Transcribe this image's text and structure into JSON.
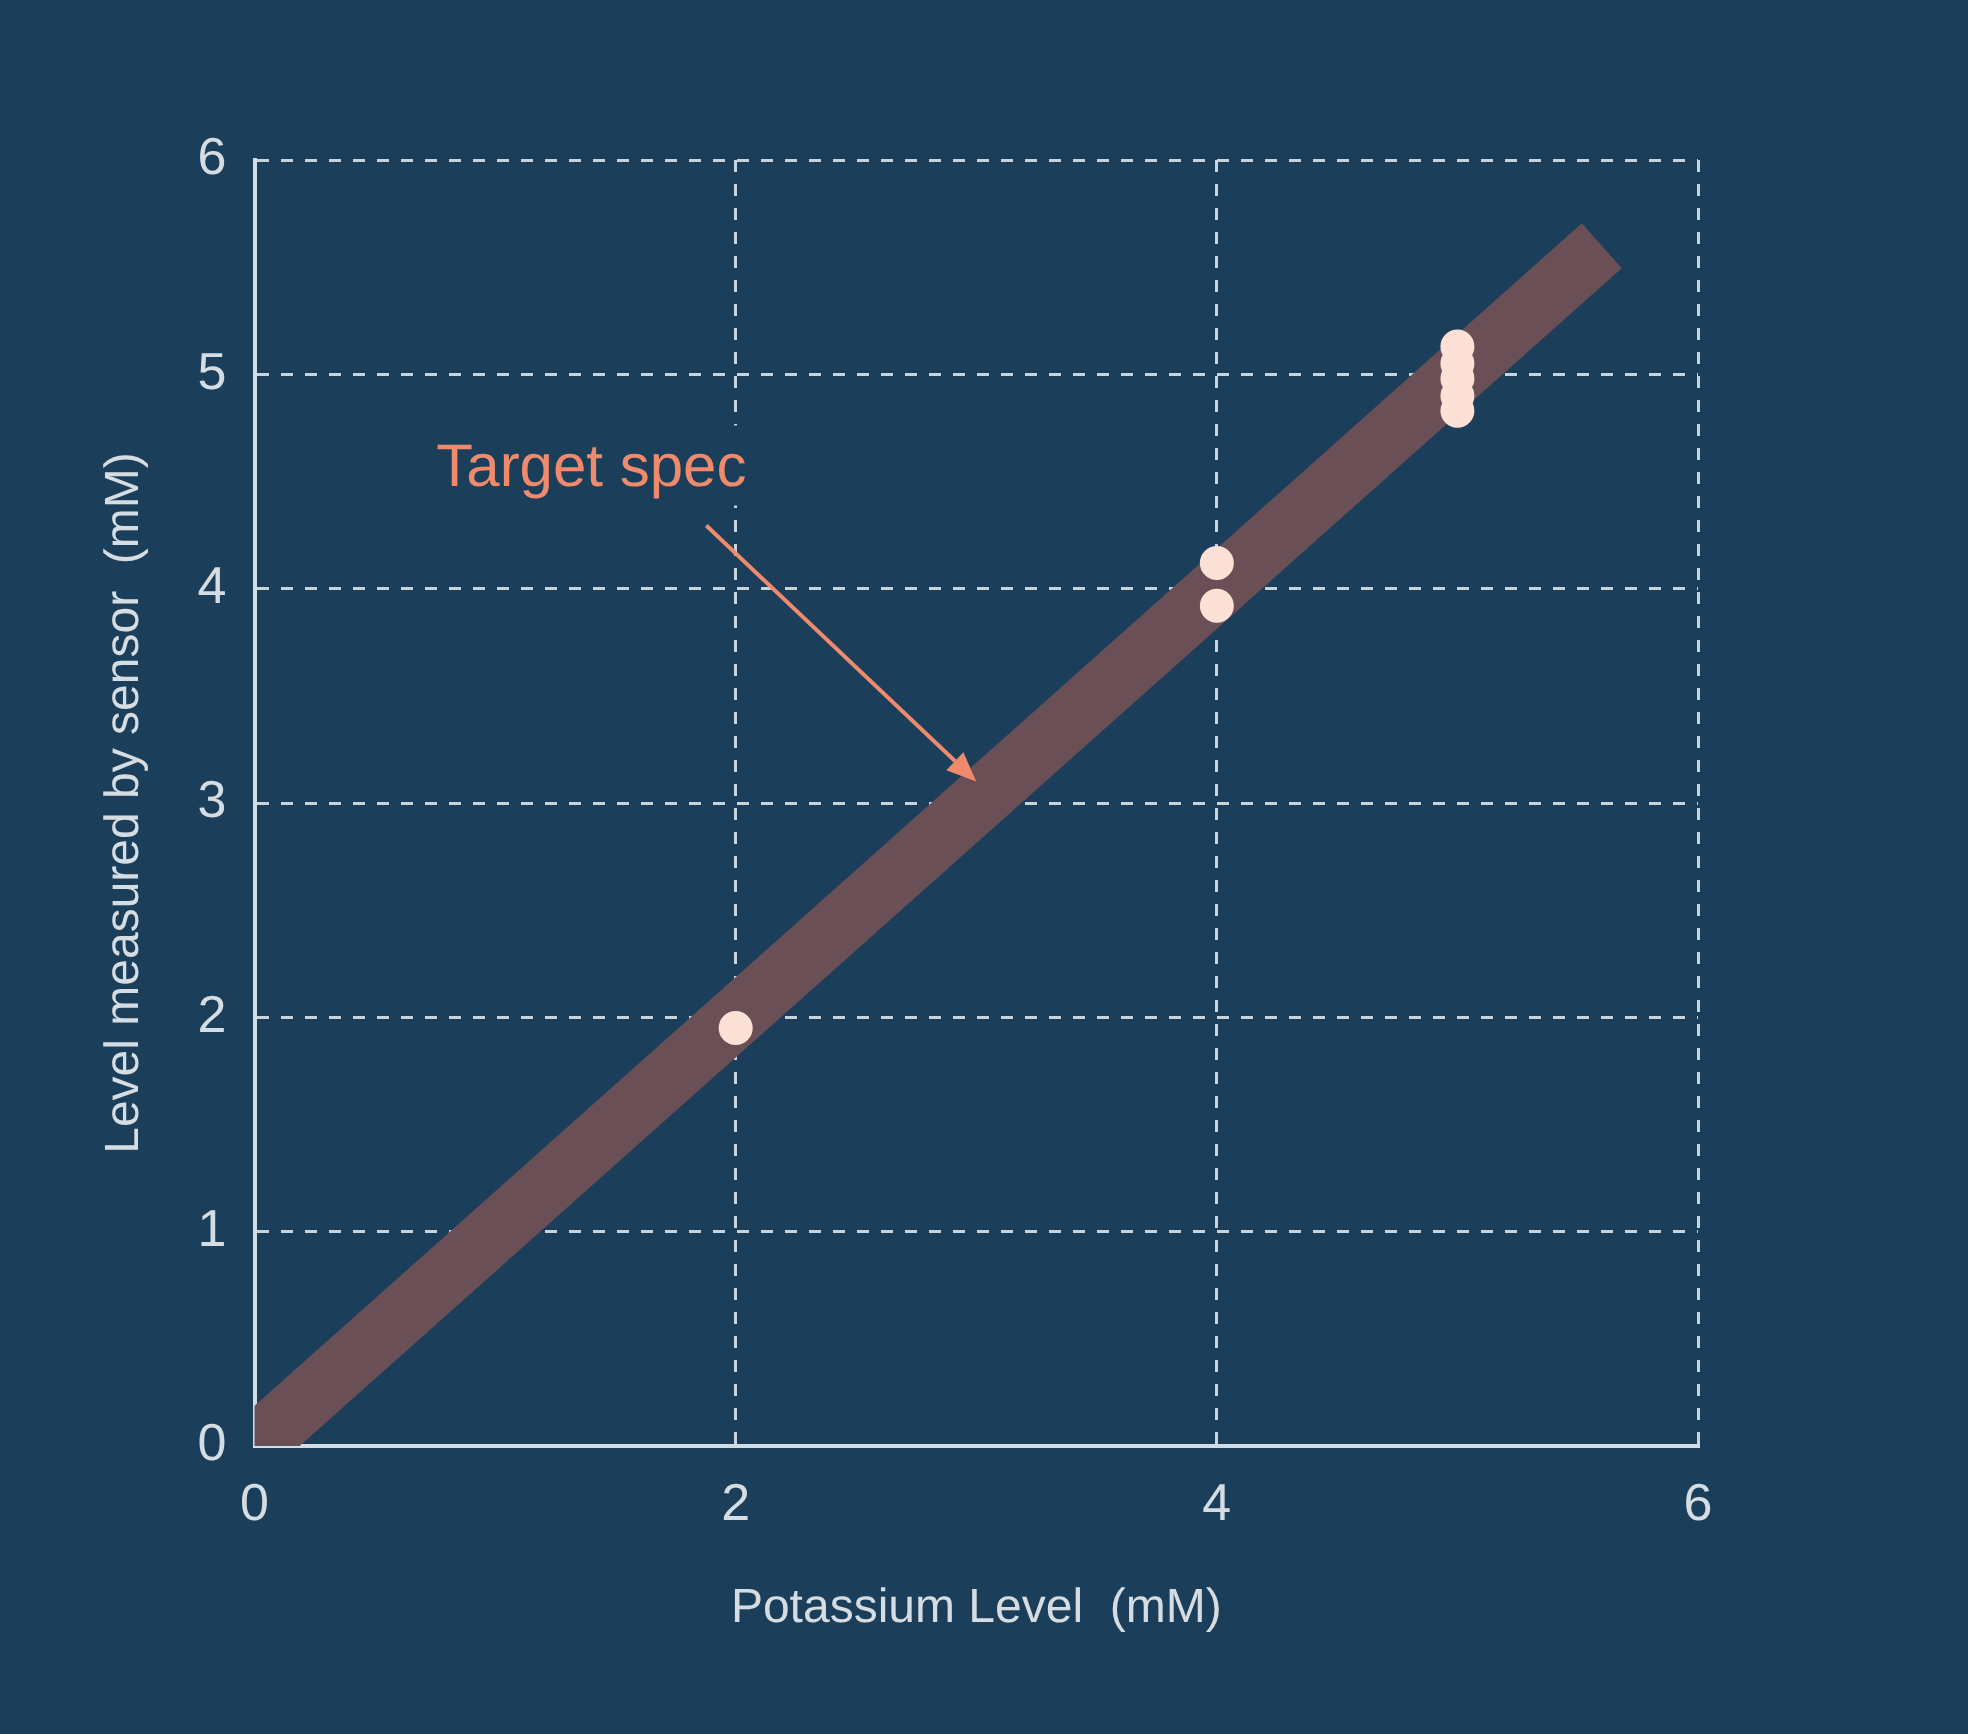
{
  "chart_data": {
    "type": "scatter",
    "xlabel": "Potassium Level  (mM)",
    "ylabel": "Level measured by sensor  (mM)",
    "xlim": [
      0,
      6
    ],
    "xticks": [
      0,
      2,
      4,
      6
    ],
    "ylim": [
      0,
      6
    ],
    "yticks": [
      0,
      1,
      2,
      3,
      4,
      5,
      6
    ],
    "grid": true,
    "marker": "circle",
    "legend": false,
    "series": [
      {
        "type": "line",
        "marker": "none",
        "color": "#6b4f57",
        "x": [
          0,
          5.6
        ],
        "values": [
          0,
          5.6
        ]
      },
      {
        "color": "#fde0d6",
        "x": [
          2,
          4,
          4,
          5,
          5,
          5,
          5,
          5
        ],
        "values": [
          1.95,
          4.12,
          3.92,
          5.13,
          5.05,
          4.98,
          4.9,
          4.83
        ]
      }
    ],
    "annotations": [
      {
        "text": "Target spec",
        "x": 3,
        "y": 3.1
      }
    ]
  }
}
